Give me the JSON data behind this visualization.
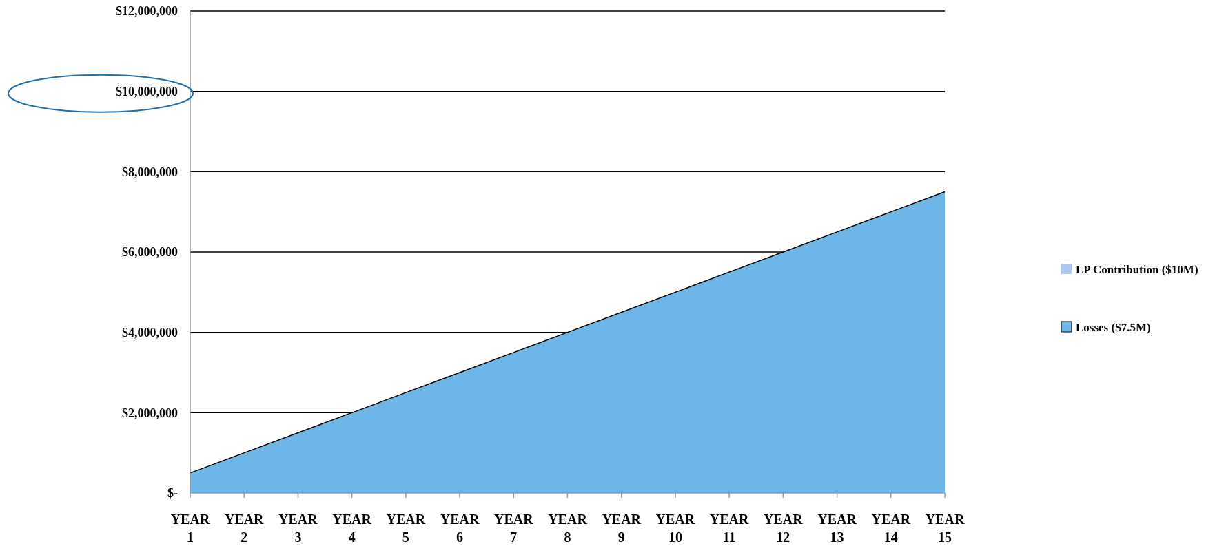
{
  "chart_data": {
    "type": "area",
    "categories": [
      "YEAR 1",
      "YEAR 2",
      "YEAR 3",
      "YEAR 4",
      "YEAR 5",
      "YEAR 6",
      "YEAR 7",
      "YEAR 8",
      "YEAR 9",
      "YEAR 10",
      "YEAR 11",
      "YEAR 12",
      "YEAR 13",
      "YEAR 14",
      "YEAR 15"
    ],
    "series": [
      {
        "name": "LP Contribution ($10M)",
        "color": "#a9c8f0",
        "values": [
          null,
          null,
          null,
          null,
          null,
          null,
          null,
          null,
          null,
          null,
          null,
          null,
          null,
          null,
          null
        ]
      },
      {
        "name": "Losses ($7.5M)",
        "color": "#6db6ea",
        "values": [
          500000,
          1000000,
          1500000,
          2000000,
          2500000,
          3000000,
          3500000,
          4000000,
          4500000,
          5000000,
          5500000,
          6000000,
          6500000,
          7000000,
          7500000
        ]
      }
    ],
    "ylim": [
      0,
      12000000
    ],
    "yticks": [
      {
        "value": 0,
        "label": "$-"
      },
      {
        "value": 2000000,
        "label": "$2,000,000"
      },
      {
        "value": 4000000,
        "label": "$4,000,000"
      },
      {
        "value": 6000000,
        "label": "$6,000,000"
      },
      {
        "value": 8000000,
        "label": "$8,000,000"
      },
      {
        "value": 10000000,
        "label": "$10,000,000"
      },
      {
        "value": 12000000,
        "label": "$12,000,000"
      }
    ],
    "grid": "y",
    "legend": "right"
  }
}
